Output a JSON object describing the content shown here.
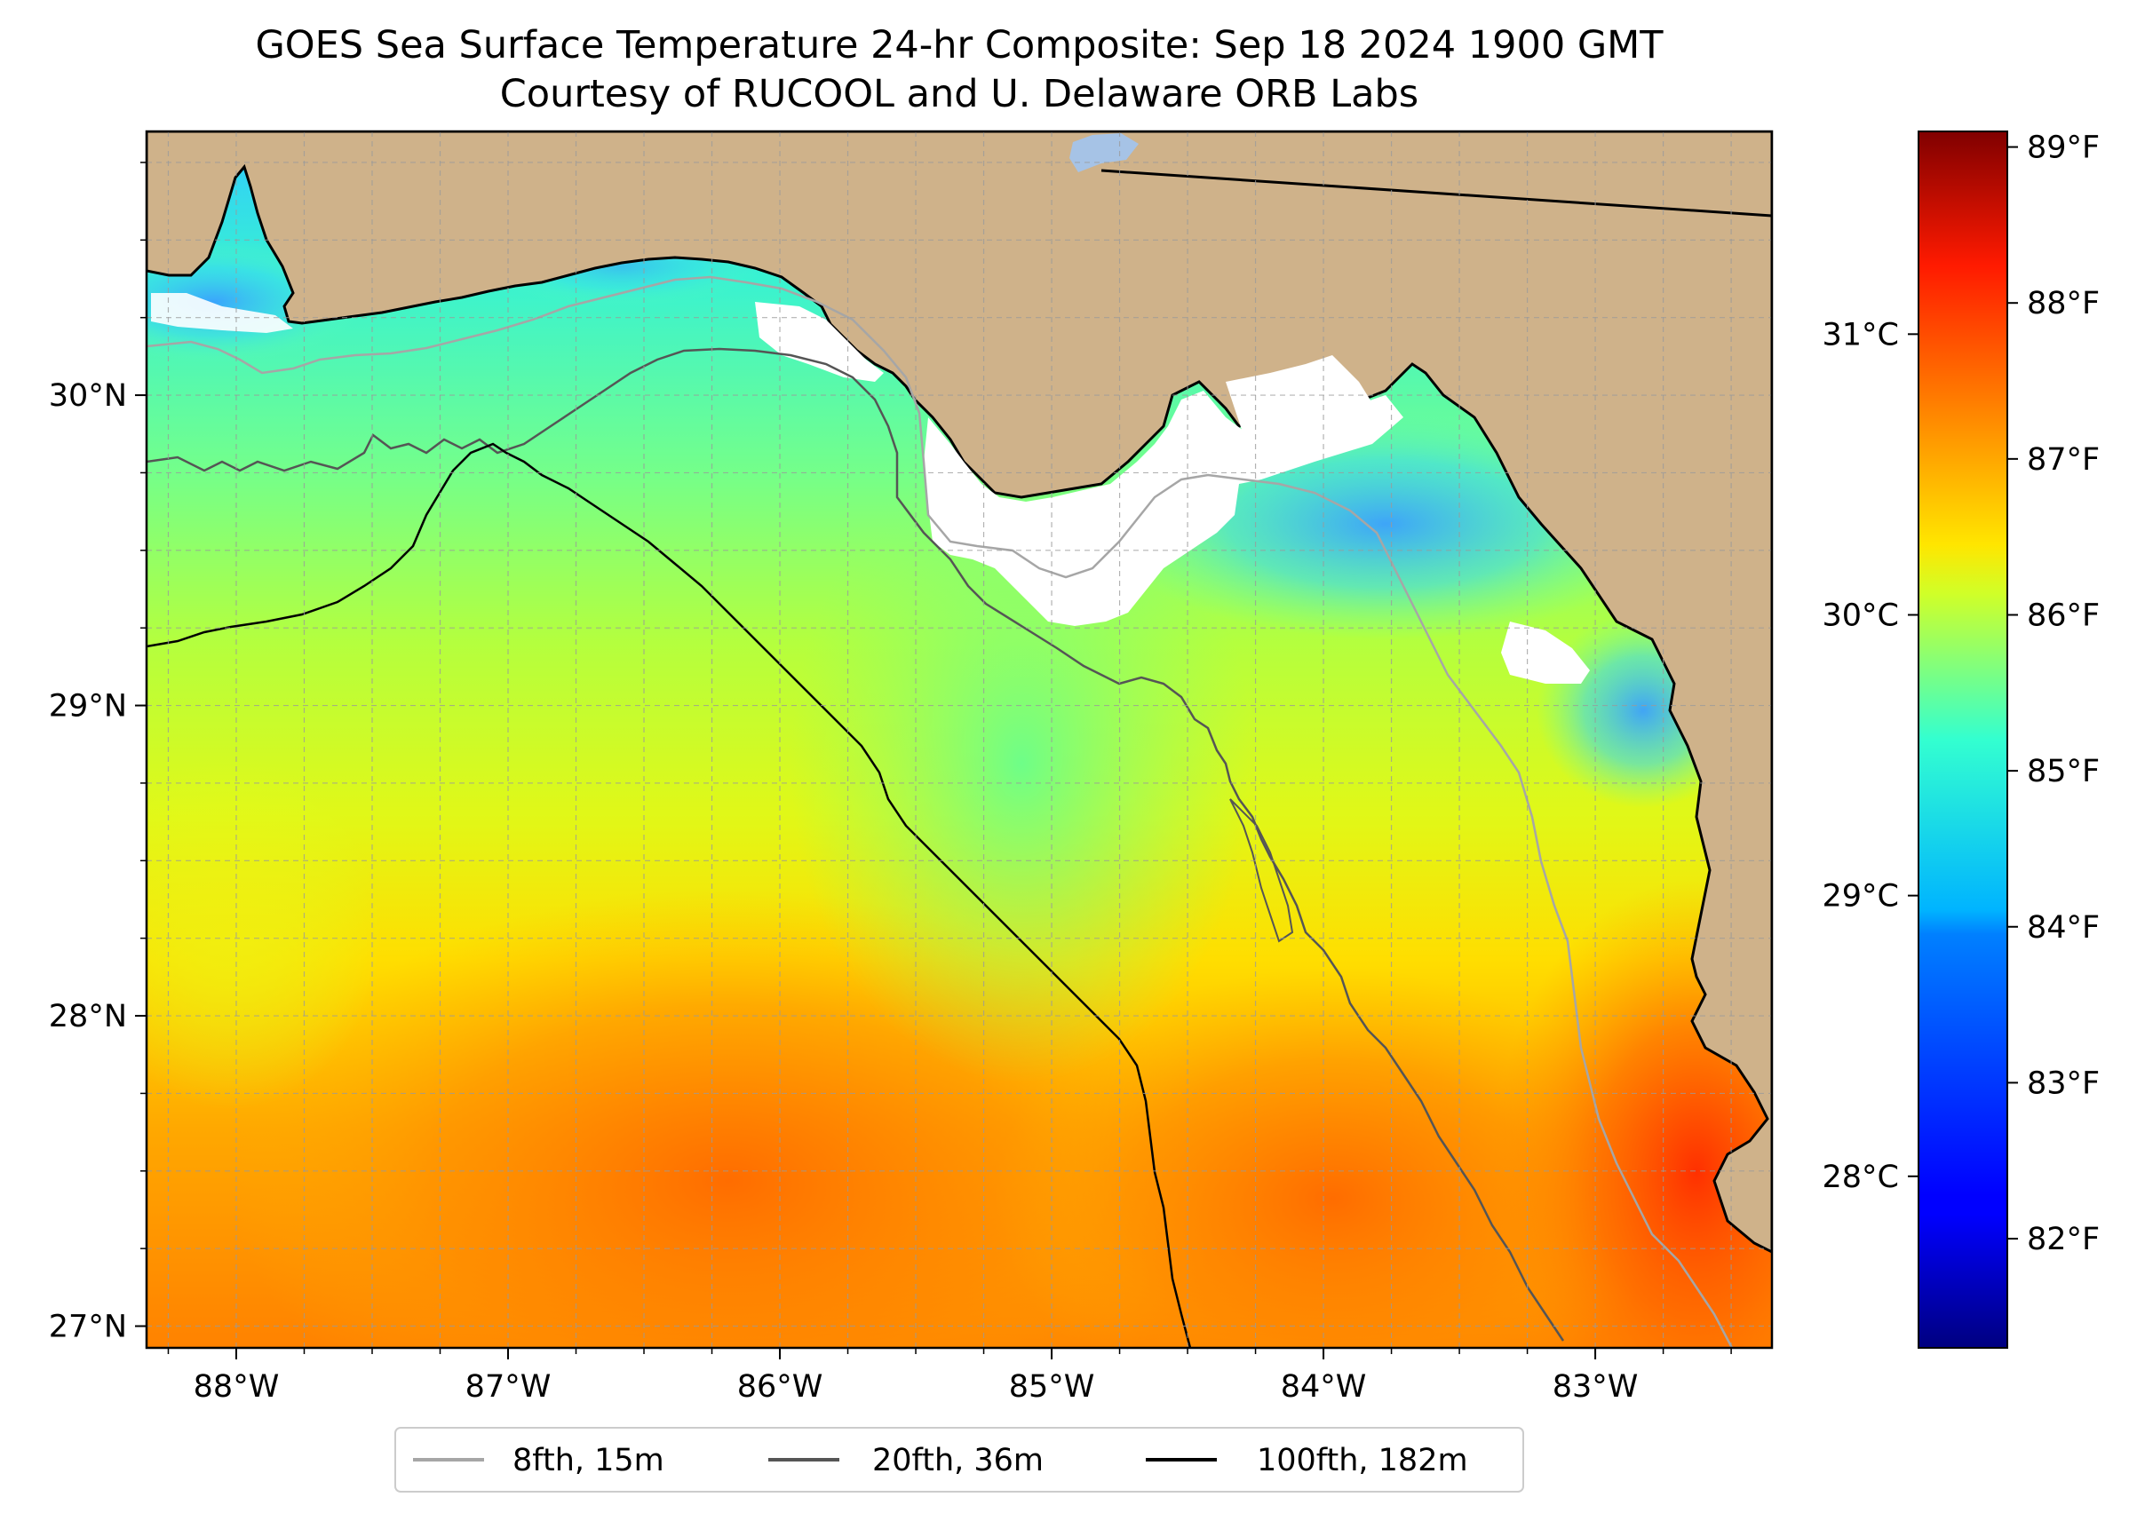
{
  "title": {
    "line1": "GOES Sea Surface Temperature 24-hr Composite: Sep 18 2024 1900 GMT",
    "line2": "Courtesy of RUCOOL and U. Delaware ORB Labs"
  },
  "map": {
    "lon_range": [
      -88.33,
      -82.35
    ],
    "lat_range": [
      26.93,
      30.85
    ],
    "lon_ticks": [
      {
        "value": -88,
        "label": "88°W"
      },
      {
        "value": -87,
        "label": "87°W"
      },
      {
        "value": -86,
        "label": "86°W"
      },
      {
        "value": -85,
        "label": "85°W"
      },
      {
        "value": -84,
        "label": "84°W"
      },
      {
        "value": -83,
        "label": "83°W"
      }
    ],
    "lat_ticks": [
      {
        "value": 30,
        "label": "30°N"
      },
      {
        "value": 29,
        "label": "29°N"
      },
      {
        "value": 28,
        "label": "28°N"
      },
      {
        "value": 27,
        "label": "27°N"
      }
    ],
    "grid_step_deg": 0.25,
    "colors": {
      "land": "#cfb28a",
      "no_data": "#ffffff",
      "lake": "#a6c3e6",
      "coastline": "#000000",
      "grid": "#9a9a9a"
    }
  },
  "colorbar": {
    "colormap": "jet",
    "range_f": [
      81.3,
      89.1
    ],
    "f_ticks": [
      {
        "value": 82,
        "label": "82°F"
      },
      {
        "value": 83,
        "label": "83°F"
      },
      {
        "value": 84,
        "label": "84°F"
      },
      {
        "value": 85,
        "label": "85°F"
      },
      {
        "value": 86,
        "label": "86°F"
      },
      {
        "value": 87,
        "label": "87°F"
      },
      {
        "value": 88,
        "label": "88°F"
      },
      {
        "value": 89,
        "label": "89°F"
      }
    ],
    "c_ticks": [
      {
        "value": 28,
        "label": "28°C"
      },
      {
        "value": 29,
        "label": "29°C"
      },
      {
        "value": 30,
        "label": "30°C"
      },
      {
        "value": 31,
        "label": "31°C"
      }
    ]
  },
  "legend": {
    "items": [
      {
        "label": "8fth, 15m",
        "color": "#a6a6a6"
      },
      {
        "label": "20fth, 36m",
        "color": "#555555"
      },
      {
        "label": "100fth, 182m",
        "color": "#000000"
      }
    ]
  }
}
